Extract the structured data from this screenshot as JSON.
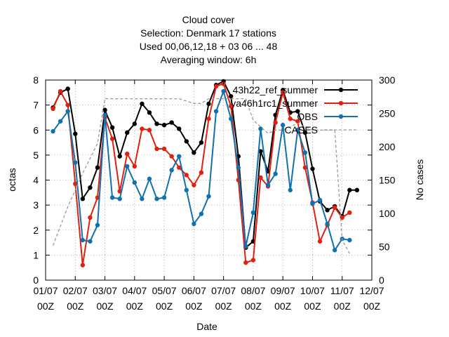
{
  "chart_data": {
    "type": "line",
    "title_lines": [
      "Cloud cover",
      "Selection: Denmark      17 stations",
      "Used  00,06,12,18  + 03 06 ... 48",
      "Averaging window:  6h"
    ],
    "xlabel": "Date",
    "ylabel": "octas",
    "y2label": "No cases",
    "ylim": [
      0,
      8
    ],
    "y2lim": [
      0,
      300
    ],
    "xlim": [
      0,
      11
    ],
    "yticks": [
      "0",
      "1",
      "2",
      "3",
      "4",
      "5",
      "6",
      "7",
      "8"
    ],
    "y2ticks": [
      "0",
      "50",
      "100",
      "150",
      "200",
      "250",
      "300"
    ],
    "xticks": [
      {
        "top": "01/07",
        "bottom": "00Z"
      },
      {
        "top": "02/07",
        "bottom": "00Z"
      },
      {
        "top": "03/07",
        "bottom": "00Z"
      },
      {
        "top": "04/07",
        "bottom": "00Z"
      },
      {
        "top": "05/07",
        "bottom": "00Z"
      },
      {
        "top": "06/07",
        "bottom": "00Z"
      },
      {
        "top": "07/07",
        "bottom": "00Z"
      },
      {
        "top": "08/07",
        "bottom": "00Z"
      },
      {
        "top": "09/07",
        "bottom": "00Z"
      },
      {
        "top": "10/07",
        "bottom": "00Z"
      },
      {
        "top": "11/07",
        "bottom": "00Z"
      },
      {
        "top": "12/07",
        "bottom": "00Z"
      }
    ],
    "grid": true,
    "legend": "top-right",
    "series": [
      {
        "name": "43h22_ref_summer",
        "color": "#000000",
        "axis": "left",
        "x": [
          0.25,
          0.5,
          0.75,
          1.0,
          1.25,
          1.5,
          1.75,
          2.0,
          2.25,
          2.5,
          2.75,
          3.0,
          3.25,
          3.5,
          3.75,
          4.0,
          4.25,
          4.5,
          4.75,
          5.0,
          5.25,
          5.5,
          5.75,
          6.0,
          6.25,
          6.5,
          6.75,
          7.0,
          7.25,
          7.5,
          7.75,
          8.0,
          8.25,
          8.5,
          8.75,
          9.0,
          9.25,
          9.5,
          9.75,
          10.0,
          10.25,
          10.5
        ],
        "values": [
          6.9,
          7.5,
          7.65,
          5.85,
          3.25,
          3.7,
          4.5,
          6.8,
          6.1,
          4.95,
          5.9,
          6.25,
          7.05,
          6.7,
          6.25,
          6.2,
          6.3,
          6.05,
          5.55,
          5.1,
          5.5,
          7.05,
          7.8,
          7.95,
          7.35,
          4.95,
          1.3,
          1.55,
          5.15,
          4.35,
          6.6,
          7.6,
          6.7,
          6.75,
          5.9,
          4.45,
          3.15,
          2.8,
          2.95,
          2.55,
          3.6,
          3.6
        ]
      },
      {
        "name": "ya46h1rc1_summer",
        "color": "#e02010",
        "axis": "left",
        "x": [
          0.25,
          0.5,
          0.75,
          1.0,
          1.25,
          1.5,
          1.75,
          2.0,
          2.25,
          2.5,
          2.75,
          3.0,
          3.25,
          3.5,
          3.75,
          4.0,
          4.25,
          4.5,
          4.75,
          5.0,
          5.25,
          5.5,
          5.75,
          6.0,
          6.25,
          6.5,
          6.75,
          7.0,
          7.25,
          7.5,
          7.75,
          8.0,
          8.25,
          8.5,
          8.75,
          9.0,
          9.25,
          9.5,
          9.75,
          10.0,
          10.25
        ],
        "values": [
          6.85,
          7.55,
          7.0,
          3.85,
          0.6,
          2.5,
          3.3,
          6.5,
          5.65,
          3.55,
          5.05,
          4.55,
          6.05,
          6.0,
          5.25,
          5.25,
          4.95,
          4.5,
          4.2,
          3.8,
          4.3,
          6.45,
          7.75,
          7.85,
          6.95,
          4.0,
          0.7,
          0.8,
          4.1,
          3.75,
          6.3,
          7.5,
          6.45,
          6.35,
          4.5,
          3.1,
          1.55,
          2.2,
          2.9,
          2.5,
          2.7
        ]
      },
      {
        "name": "OBS",
        "color": "#1070b0",
        "axis": "left",
        "x": [
          0.25,
          0.5,
          0.75,
          1.0,
          1.25,
          1.5,
          1.75,
          2.0,
          2.25,
          2.5,
          2.75,
          3.0,
          3.25,
          3.5,
          3.75,
          4.0,
          4.25,
          4.5,
          4.75,
          5.0,
          5.25,
          5.5,
          5.75,
          6.0,
          6.25,
          6.5,
          6.75,
          7.0,
          7.25,
          7.5,
          7.75,
          8.0,
          8.25,
          8.5,
          8.75,
          9.0,
          9.25,
          9.5,
          9.75,
          10.0,
          10.25
        ],
        "values": [
          5.95,
          6.35,
          6.75,
          4.7,
          1.6,
          1.55,
          2.2,
          6.6,
          3.3,
          3.25,
          4.55,
          3.9,
          3.25,
          4.05,
          3.25,
          3.3,
          4.4,
          4.95,
          3.6,
          2.25,
          2.65,
          3.35,
          6.75,
          7.55,
          6.45,
          4.5,
          1.35,
          2.7,
          6.05,
          3.8,
          4.25,
          6.2,
          3.6,
          6.0,
          5.1,
          3.05,
          3.2,
          2.25,
          1.2,
          1.65,
          1.6
        ]
      },
      {
        "name": "CASES",
        "color": "#999999",
        "axis": "right",
        "dashed": true,
        "x": [
          0.25,
          0.75,
          1.25,
          1.75,
          2.0,
          2.5,
          3.0,
          3.5,
          4.0,
          4.5,
          5.0,
          5.25,
          5.5,
          6.0,
          6.5,
          6.75,
          7.0,
          7.5,
          7.75,
          8.0,
          8.5,
          9.0,
          9.5,
          9.75,
          10.0,
          10.25
        ],
        "values": [
          52,
          110,
          160,
          205,
          272,
          272,
          272,
          272,
          272,
          272,
          265,
          265,
          272,
          272,
          272,
          272,
          240,
          220,
          225,
          225,
          235,
          225,
          225,
          225,
          60,
          40
        ]
      }
    ]
  }
}
